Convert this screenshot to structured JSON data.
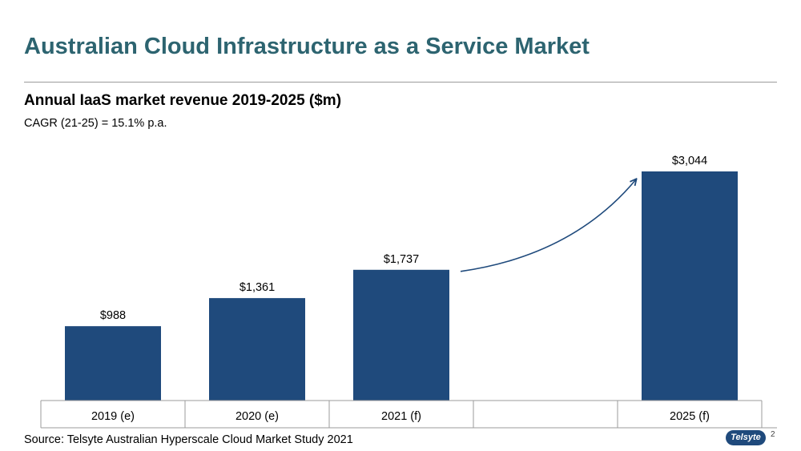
{
  "slide": {
    "title": "Australian Cloud Infrastructure as a Service Market",
    "source": "Source: Telsyte Australian Hyperscale Cloud Market Study 2021",
    "page_number": "2",
    "logo_text": "Telsyte"
  },
  "colors": {
    "title": "#2d6470",
    "bar": "#1f4a7c",
    "rule": "#9b9b9b"
  },
  "chart_data": {
    "type": "bar",
    "title": "Annual IaaS market revenue 2019-2025 ($m)",
    "subtitle": "CAGR (21-25) = 15.1% p.a.",
    "categories": [
      "2019 (e)",
      "2020 (e)",
      "2021 (f)",
      "",
      "2025 (f)"
    ],
    "values": [
      988,
      1361,
      1737,
      null,
      3044
    ],
    "data_labels": [
      "$988",
      "$1,361",
      "$1,737",
      "",
      "$3,044"
    ],
    "ylim": [
      0,
      3044
    ],
    "xlabel": "",
    "ylabel": "",
    "grid": false,
    "legend": "none",
    "annotation": "growth-arrow"
  }
}
